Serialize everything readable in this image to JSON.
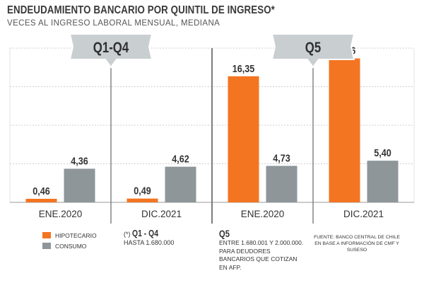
{
  "title": "ENDEUDAMIENTO BANCARIO POR QUINTIL DE INGRESO*",
  "subtitle": "VECES AL INGRESO LABORAL MENSUAL, MEDIANA",
  "colors": {
    "hipotecario": "#f37521",
    "consumo": "#8e969a",
    "grid": "#cfcfcf",
    "banner": "#c9ced1"
  },
  "chart_data": {
    "type": "bar",
    "groups": [
      {
        "label": "Q1-Q4",
        "categories": [
          "ENE.2020",
          "DIC.2021"
        ]
      },
      {
        "label": "Q5",
        "categories": [
          "ENE.2020",
          "DIC.2021"
        ]
      }
    ],
    "categories": [
      "ENE.2020",
      "DIC.2021",
      "ENE.2020",
      "DIC.2021"
    ],
    "series": [
      {
        "name": "HIPOTECARIO",
        "values": [
          0.46,
          0.49,
          16.35,
          18.66
        ],
        "labels": [
          "0,46",
          "0,49",
          "16,35",
          "18,66"
        ]
      },
      {
        "name": "CONSUMO",
        "values": [
          4.36,
          4.62,
          4.73,
          5.4
        ],
        "labels": [
          "4,36",
          "4,62",
          "4,73",
          "5,40"
        ]
      }
    ],
    "ylim": [
      0,
      20
    ],
    "grid": true
  },
  "legend": {
    "hipotecario": "HIPOTECARIO",
    "consumo": "CONSUMO"
  },
  "note_q14": {
    "mark": "(*)",
    "label": "Q1 - Q4",
    "text": "HASTA 1.680.000"
  },
  "note_q5": {
    "label": "Q5",
    "text": "ENTRE 1.680.001 Y 2.000.000. PARA DEUDORES BANCARIOS QUE COTIZAN EN AFP."
  },
  "source": "FUENTE: BANCO CENTRAL DE CHILE EN BASE A INFORMACIÓN DE CMF Y SUSESO"
}
